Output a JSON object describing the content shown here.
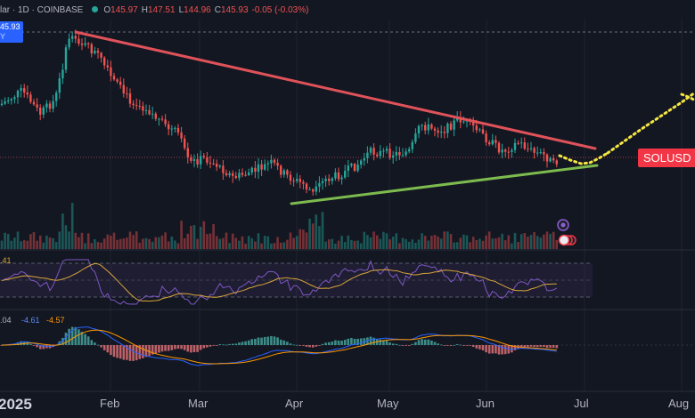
{
  "header": {
    "symbol_text": "lar · 1D · COINBASE",
    "open_label": "O",
    "open": "145.97",
    "high_label": "H",
    "high": "147.51",
    "low_label": "L",
    "low": "144.96",
    "close_label": "C",
    "close": "145.93",
    "change": "-0.05 (-0.03%)"
  },
  "price_tag": {
    "line1": "45.93",
    "line2": "Y"
  },
  "symbol_label": "SOLUSD",
  "rsi": {
    "value_label": ".41"
  },
  "macd": {
    "val1": ".04",
    "val2": "-4.61",
    "val3": "-4.57"
  },
  "colors": {
    "background": "#131722",
    "up": "#26a69a",
    "down": "#ef5350",
    "resistance_line": "#e0525a",
    "support_line": "#7dbb4e",
    "projection": "#f5e642",
    "rsi_line": "#7e57c2",
    "rsi_ma": "#d9a53a",
    "macd_line": "#2962ff",
    "signal_line": "#ff9800",
    "symbol_label_bg": "#f23645"
  },
  "chart_data": {
    "type": "candlestick",
    "symbol": "SOLUSD",
    "interval": "1D",
    "exchange": "COINBASE",
    "x_axis_labels": [
      "2025",
      "Feb",
      "Mar",
      "Apr",
      "May",
      "Jun",
      "Jul",
      "Aug"
    ],
    "indicators": [
      "Volume",
      "RSI",
      "MACD"
    ],
    "annotations": [
      "descending resistance trendline",
      "ascending support trendline",
      "dotted projection upward"
    ],
    "series_summary": [
      {
        "month": "Jan",
        "approx_close_trend": "rising to peak"
      },
      {
        "month": "Feb",
        "approx_close_trend": "declining"
      },
      {
        "month": "Mar",
        "approx_close_trend": "declining"
      },
      {
        "month": "Apr",
        "approx_close_trend": "bottom then recovery"
      },
      {
        "month": "May",
        "approx_close_trend": "rising"
      },
      {
        "month": "Jun",
        "approx_close_trend": "consolidating near 145.93"
      }
    ]
  }
}
